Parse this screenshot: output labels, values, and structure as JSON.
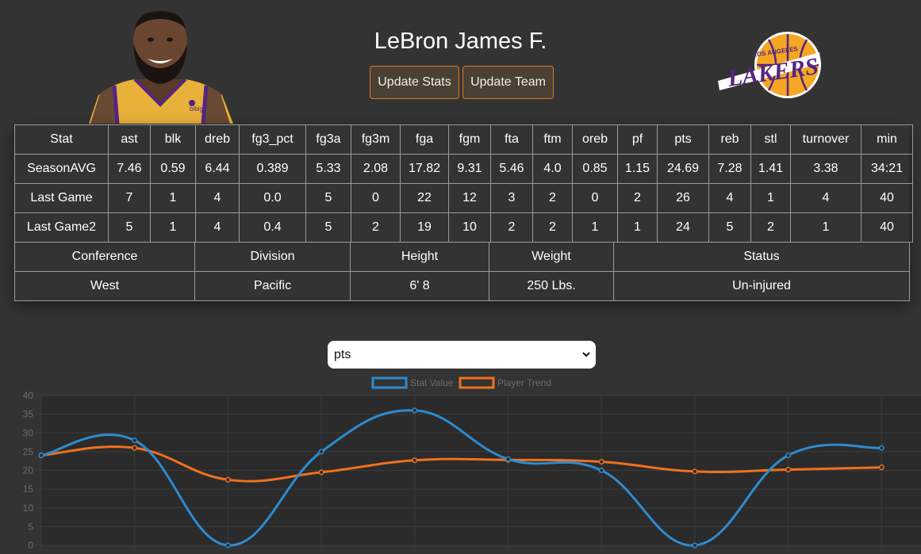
{
  "header": {
    "player_name": "LeBron James F.",
    "update_stats_label": "Update Stats",
    "update_team_label": "Update Team",
    "team_logo_top_text": "LOS ANGELES",
    "team_logo_main_text": "LAKERS",
    "jersey_sponsor_text": "bibigo"
  },
  "colors": {
    "background": "#333333",
    "button_border": "#e07a27",
    "series_stat": "#2e8bd0",
    "series_trend": "#f0701e",
    "lakers_gold": "#f5a623",
    "lakers_purple": "#552583"
  },
  "stats_table": {
    "headers": [
      "Stat",
      "ast",
      "blk",
      "dreb",
      "fg3_pct",
      "fg3a",
      "fg3m",
      "fga",
      "fgm",
      "fta",
      "ftm",
      "oreb",
      "pf",
      "pts",
      "reb",
      "stl",
      "turnover",
      "min"
    ],
    "rows": [
      [
        "SeasonAVG",
        "7.46",
        "0.59",
        "6.44",
        "0.389",
        "5.33",
        "2.08",
        "17.82",
        "9.31",
        "5.46",
        "4.0",
        "0.85",
        "1.15",
        "24.69",
        "7.28",
        "1.41",
        "3.38",
        "34:21"
      ],
      [
        "Last Game",
        "7",
        "1",
        "4",
        "0.0",
        "5",
        "0",
        "22",
        "12",
        "3",
        "2",
        "0",
        "2",
        "26",
        "4",
        "1",
        "4",
        "40"
      ],
      [
        "Last Game2",
        "5",
        "1",
        "4",
        "0.4",
        "5",
        "2",
        "19",
        "10",
        "2",
        "2",
        "1",
        "1",
        "24",
        "5",
        "2",
        "1",
        "40"
      ]
    ]
  },
  "info_table": {
    "headers": [
      "Conference",
      "Division",
      "Height",
      "Weight",
      "Status"
    ],
    "values": [
      "West",
      "Pacific",
      "6' 8",
      "250 Lbs.",
      "Un-injured"
    ]
  },
  "stat_select": {
    "selected": "pts"
  },
  "chart_data": {
    "type": "line",
    "legend_position": "top-center",
    "grid": true,
    "ylim": [
      0,
      40
    ],
    "y_ticks": [
      0,
      5,
      10,
      15,
      20,
      25,
      30,
      35,
      40
    ],
    "x": [
      0,
      1,
      2,
      3,
      4,
      5,
      6,
      7,
      8,
      9
    ],
    "series": [
      {
        "name": "Stat Value",
        "color": "#2e8bd0",
        "values": [
          24,
          28,
          0,
          25,
          36,
          23,
          20,
          0,
          24,
          26
        ]
      },
      {
        "name": "Player Trend",
        "color": "#f0701e",
        "values": [
          24,
          26,
          17.5,
          19.5,
          22.7,
          22.8,
          22.3,
          19.7,
          20.2,
          20.8
        ]
      }
    ]
  }
}
